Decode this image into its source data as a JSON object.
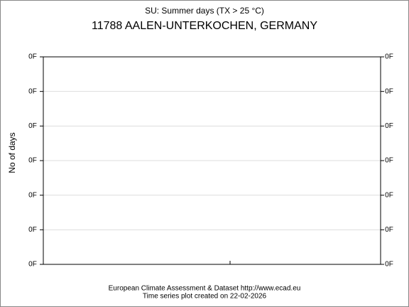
{
  "chart_data": {
    "type": "line",
    "title": "SU: Summer days (TX > 25 °C)",
    "subtitle": "11788 AALEN-UNTERKOCHEN, GERMANY",
    "ylabel": "No of days",
    "ylim": [
      0,
      6
    ],
    "yticks": [
      {
        "value": 0,
        "label": "0F"
      },
      {
        "value": 1,
        "label": "0F"
      },
      {
        "value": 2,
        "label": "0F"
      },
      {
        "value": 3,
        "label": "0F"
      },
      {
        "value": 4,
        "label": "0F"
      },
      {
        "value": 5,
        "label": "0F"
      },
      {
        "value": 6,
        "label": "0F"
      }
    ],
    "grid": true,
    "footer": [
      "European Climate Assessment & Dataset  http://www.ecad.eu",
      "Time series plot created on 22-02-2026"
    ]
  }
}
